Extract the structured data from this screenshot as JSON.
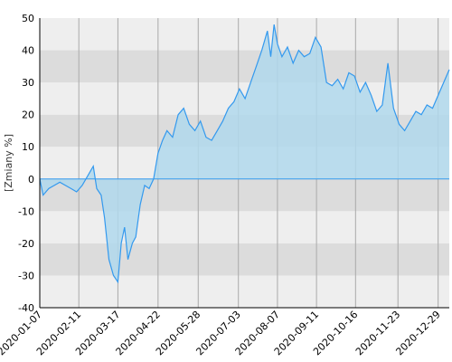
{
  "chart_data": {
    "type": "area",
    "ylabel": "[Zmiany %]",
    "ylim": [
      -40,
      50
    ],
    "yticks": [
      -40,
      -30,
      -20,
      -10,
      0,
      10,
      20,
      30,
      40,
      50
    ],
    "xlim": [
      "2020-01-07",
      "2021-01-08"
    ],
    "xticks": [
      "2020-01-07",
      "2020-02-11",
      "2020-03-17",
      "2020-04-22",
      "2020-05-28",
      "2020-07-03",
      "2020-08-07",
      "2020-09-11",
      "2020-10-16",
      "2020-11-23",
      "2020-12-29"
    ],
    "colors": {
      "line": "#3399ee",
      "fill": "#b0d8ec",
      "band_dark": "#dcdcdc",
      "band_light": "#eeeeee",
      "grid": "#aaaaaa",
      "axis": "#000000"
    },
    "series": [
      {
        "x": [
          "2020-01-07",
          "2020-01-10",
          "2020-01-15",
          "2020-01-20",
          "2020-01-25",
          "2020-01-30",
          "2020-02-04",
          "2020-02-09",
          "2020-02-14",
          "2020-02-19",
          "2020-02-24",
          "2020-02-27",
          "2020-03-02",
          "2020-03-05",
          "2020-03-09",
          "2020-03-13",
          "2020-03-17",
          "2020-03-20",
          "2020-03-23",
          "2020-03-26",
          "2020-03-30",
          "2020-04-02",
          "2020-04-06",
          "2020-04-10",
          "2020-04-14",
          "2020-04-18",
          "2020-04-22",
          "2020-04-26",
          "2020-04-30",
          "2020-05-05",
          "2020-05-10",
          "2020-05-15",
          "2020-05-20",
          "2020-05-25",
          "2020-05-30",
          "2020-06-04",
          "2020-06-09",
          "2020-06-14",
          "2020-06-19",
          "2020-06-24",
          "2020-06-29",
          "2020-07-04",
          "2020-07-09",
          "2020-07-14",
          "2020-07-19",
          "2020-07-24",
          "2020-07-29",
          "2020-08-01",
          "2020-08-04",
          "2020-08-07",
          "2020-08-11",
          "2020-08-16",
          "2020-08-21",
          "2020-08-26",
          "2020-08-31",
          "2020-09-05",
          "2020-09-10",
          "2020-09-15",
          "2020-09-20",
          "2020-09-25",
          "2020-09-30",
          "2020-10-05",
          "2020-10-10",
          "2020-10-15",
          "2020-10-20",
          "2020-10-25",
          "2020-10-30",
          "2020-11-04",
          "2020-11-09",
          "2020-11-14",
          "2020-11-19",
          "2020-11-24",
          "2020-11-29",
          "2020-12-04",
          "2020-12-09",
          "2020-12-14",
          "2020-12-19",
          "2020-12-24",
          "2020-12-29",
          "2021-01-03",
          "2021-01-08"
        ],
        "y": [
          0,
          -5,
          -3,
          -2,
          -1,
          -2,
          -3,
          -4,
          -2,
          1,
          4,
          -3,
          -5,
          -12,
          -25,
          -30,
          -32,
          -20,
          -15,
          -25,
          -20,
          -18,
          -8,
          -2,
          -3,
          0,
          8,
          12,
          15,
          13,
          20,
          22,
          17,
          15,
          18,
          13,
          12,
          15,
          18,
          22,
          24,
          28,
          25,
          30,
          35,
          40,
          46,
          38,
          48,
          42,
          38,
          41,
          36,
          40,
          38,
          39,
          44,
          41,
          30,
          29,
          31,
          28,
          33,
          32,
          27,
          30,
          26,
          21,
          23,
          36,
          22,
          17,
          15,
          18,
          21,
          20,
          23,
          22,
          26,
          30,
          34
        ]
      }
    ]
  }
}
